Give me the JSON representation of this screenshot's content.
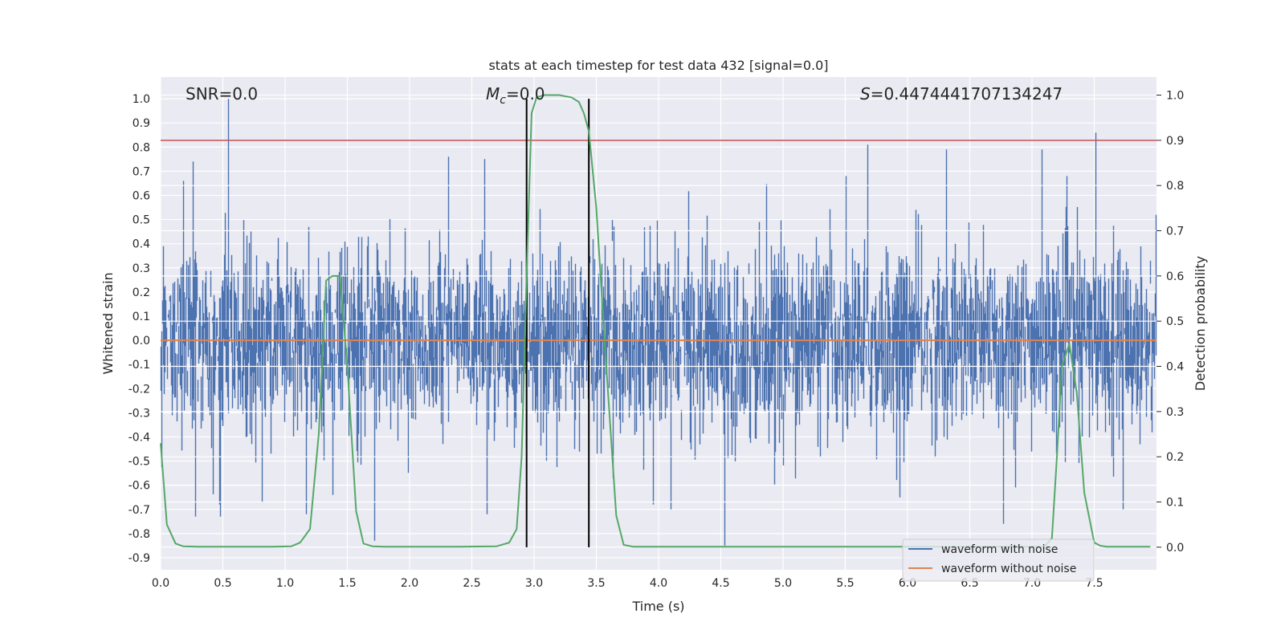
{
  "chart_data": {
    "type": "line",
    "title": "stats at each timestep for test data 432 [signal=0.0]",
    "xlabel": "Time (s)",
    "ylabel_left": "Whitened strain",
    "ylabel_right": "Detection probability",
    "xlim": [
      0.0,
      8.0
    ],
    "ylim_left": [
      -0.95,
      1.09
    ],
    "ylim_right": [
      -0.05,
      1.04
    ],
    "xticks": [
      "0.0",
      "0.5",
      "1.0",
      "1.5",
      "2.0",
      "2.5",
      "3.0",
      "3.5",
      "4.0",
      "4.5",
      "5.0",
      "5.5",
      "6.0",
      "6.5",
      "7.0",
      "7.5"
    ],
    "yticks_left": [
      "-0.9",
      "-0.8",
      "-0.7",
      "-0.6",
      "-0.5",
      "-0.4",
      "-0.3",
      "-0.2",
      "-0.1",
      "0.0",
      "0.1",
      "0.2",
      "0.3",
      "0.4",
      "0.5",
      "0.6",
      "0.7",
      "0.8",
      "0.9",
      "1.0"
    ],
    "yticks_right": [
      "0.0",
      "0.1",
      "0.2",
      "0.3",
      "0.4",
      "0.5",
      "0.6",
      "0.7",
      "0.8",
      "0.9",
      "1.0"
    ],
    "annotations": {
      "snr": "SNR=0.0",
      "mc_symbol": "M",
      "mc_sub": "c",
      "mc_value": "=0.0",
      "s_symbol": "S",
      "s_value": "=0.4474441707134247"
    },
    "threshold_line": {
      "axis": "right",
      "y": 0.9,
      "color": "#c44e52"
    },
    "vertical_lines": [
      2.94,
      3.44
    ],
    "colors": {
      "noise": "#4c72b0",
      "clean": "#dd8452",
      "prob": "#55a868",
      "plot_bg": "#eaeaf2",
      "grid": "#ffffff"
    },
    "series": [
      {
        "name": "waveform with noise",
        "axis": "left",
        "note": "whitened noisy strain, sampled at high rate; band roughly -0.5 to 0.5 with spikes (max ~1.0 at t=0.54)",
        "seed": 432,
        "spikes": [
          {
            "t": 0.54,
            "v": 1.0
          },
          {
            "t": 0.26,
            "v": 0.74
          },
          {
            "t": 0.18,
            "v": 0.66
          },
          {
            "t": 2.31,
            "v": 0.76
          },
          {
            "t": 2.6,
            "v": 0.75
          },
          {
            "t": 5.68,
            "v": 0.81
          },
          {
            "t": 6.31,
            "v": 0.79
          },
          {
            "t": 7.08,
            "v": 0.79
          },
          {
            "t": 7.51,
            "v": 0.86
          },
          {
            "t": 4.53,
            "v": -0.85
          },
          {
            "t": 1.72,
            "v": -0.83
          },
          {
            "t": 0.28,
            "v": -0.73
          },
          {
            "t": 0.48,
            "v": -0.73
          },
          {
            "t": 1.17,
            "v": -0.72
          },
          {
            "t": 1.38,
            "v": -0.64
          },
          {
            "t": 6.77,
            "v": -0.76
          },
          {
            "t": 5.94,
            "v": -0.65
          },
          {
            "t": 2.62,
            "v": -0.72
          },
          {
            "t": 4.1,
            "v": -0.7
          },
          {
            "t": 7.73,
            "v": -0.7
          }
        ]
      },
      {
        "name": "waveform without noise",
        "axis": "left",
        "x": [
          0.0,
          8.0
        ],
        "y": [
          0.0,
          0.0
        ]
      },
      {
        "name": "detection probability",
        "axis": "right",
        "x": [
          0.0,
          0.05,
          0.12,
          0.18,
          0.3,
          0.6,
          0.9,
          1.05,
          1.12,
          1.2,
          1.27,
          1.33,
          1.38,
          1.44,
          1.5,
          1.57,
          1.63,
          1.7,
          1.8,
          2.0,
          2.4,
          2.7,
          2.8,
          2.86,
          2.9,
          2.94,
          2.98,
          3.02,
          3.08,
          3.2,
          3.3,
          3.36,
          3.4,
          3.44,
          3.5,
          3.58,
          3.66,
          3.72,
          3.8,
          4.0,
          5.0,
          6.0,
          6.8,
          7.0,
          7.1,
          7.16,
          7.2,
          7.24,
          7.3,
          7.36,
          7.42,
          7.5,
          7.55,
          7.6,
          7.7,
          7.95
        ],
        "y": [
          0.23,
          0.05,
          0.008,
          0.002,
          0.001,
          0.001,
          0.001,
          0.002,
          0.01,
          0.04,
          0.25,
          0.59,
          0.6,
          0.6,
          0.4,
          0.08,
          0.008,
          0.002,
          0.001,
          0.001,
          0.001,
          0.002,
          0.01,
          0.04,
          0.2,
          0.6,
          0.96,
          0.995,
          1.0,
          1.0,
          0.995,
          0.985,
          0.96,
          0.92,
          0.75,
          0.4,
          0.07,
          0.005,
          0.001,
          0.001,
          0.001,
          0.001,
          0.001,
          0.001,
          0.001,
          0.02,
          0.2,
          0.4,
          0.45,
          0.34,
          0.12,
          0.01,
          0.003,
          0.001,
          0.001,
          0.001
        ]
      }
    ],
    "legend": [
      "waveform with noise",
      "waveform without noise"
    ]
  }
}
